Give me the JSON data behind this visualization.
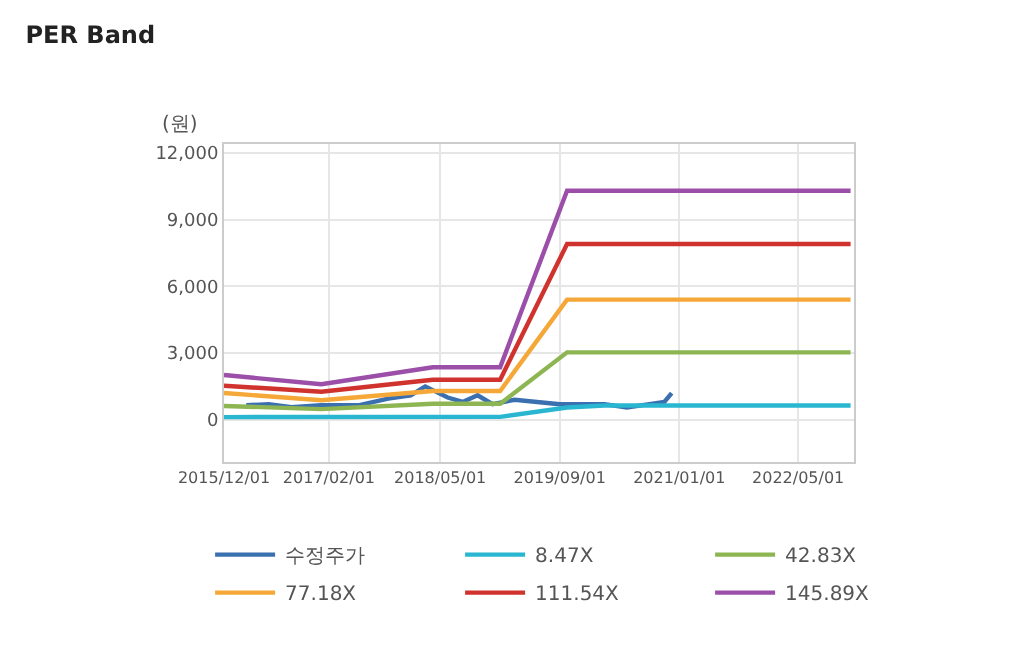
{
  "chart_data": {
    "type": "line",
    "title": "PER Band",
    "ylabel": "(원)",
    "xlim": [
      "2015-12-01",
      "2022-12-15"
    ],
    "xticks": [
      {
        "value": "2015-12-01",
        "label": "2015/12/01"
      },
      {
        "value": "2017-02-01",
        "label": "2017/02/01"
      },
      {
        "value": "2018-05-01",
        "label": "2018/05/01"
      },
      {
        "value": "2019-09-01",
        "label": "2019/09/01"
      },
      {
        "value": "2021-01-01",
        "label": "2021/01/01"
      },
      {
        "value": "2022-05-01",
        "label": "2022/05/01"
      }
    ],
    "ylim": [
      -1900,
      12400
    ],
    "yticks": [
      {
        "value": 0,
        "label": "0"
      },
      {
        "value": 3000,
        "label": "3,000"
      },
      {
        "value": 6000,
        "label": "6,000"
      },
      {
        "value": 9000,
        "label": "9,000"
      },
      {
        "value": 12000,
        "label": "12,000"
      }
    ],
    "grid": true,
    "legend": "bottom",
    "marker": "none",
    "line_style": "solid",
    "series": [
      {
        "name": "수정주가",
        "color": "#3a6fb0",
        "x": [
          "2016-03",
          "2016-06",
          "2016-09",
          "2017-01",
          "2017-06",
          "2017-10",
          "2018-01",
          "2018-03",
          "2018-06",
          "2018-08",
          "2018-10",
          "2018-12",
          "2019-03",
          "2019-09",
          "2020-03",
          "2020-06",
          "2020-09",
          "2020-11",
          "2020-12"
        ],
        "values": [
          650,
          700,
          560,
          650,
          650,
          950,
          1100,
          1500,
          1000,
          800,
          1100,
          700,
          900,
          700,
          700,
          550,
          700,
          800,
          1200
        ]
      },
      {
        "name": "8.47X",
        "color": "#29b6d0",
        "x": [
          "2015-12",
          "2019-01",
          "2019-10",
          "2020-03",
          "2022-12"
        ],
        "values": [
          120,
          130,
          550,
          640,
          640
        ]
      },
      {
        "name": "42.83X",
        "color": "#8db653",
        "x": [
          "2015-12",
          "2017-01",
          "2018-04",
          "2019-01",
          "2019-10",
          "2022-12"
        ],
        "values": [
          620,
          480,
          720,
          720,
          3030,
          3030
        ]
      },
      {
        "name": "77.18X",
        "color": "#f5a838",
        "x": [
          "2015-12",
          "2017-01",
          "2018-04",
          "2019-01",
          "2019-10",
          "2022-12"
        ],
        "values": [
          1200,
          880,
          1290,
          1290,
          5400,
          5400
        ]
      },
      {
        "name": "111.54X",
        "color": "#d0322d",
        "x": [
          "2015-12",
          "2017-01",
          "2018-04",
          "2019-01",
          "2019-10",
          "2022-12"
        ],
        "values": [
          1530,
          1260,
          1800,
          1800,
          7900,
          7900
        ]
      },
      {
        "name": "145.89X",
        "color": "#9b4fa8",
        "x": [
          "2015-12",
          "2017-01",
          "2018-04",
          "2019-01",
          "2019-10",
          "2022-12"
        ],
        "values": [
          2010,
          1600,
          2360,
          2360,
          10300,
          10300
        ]
      }
    ]
  }
}
